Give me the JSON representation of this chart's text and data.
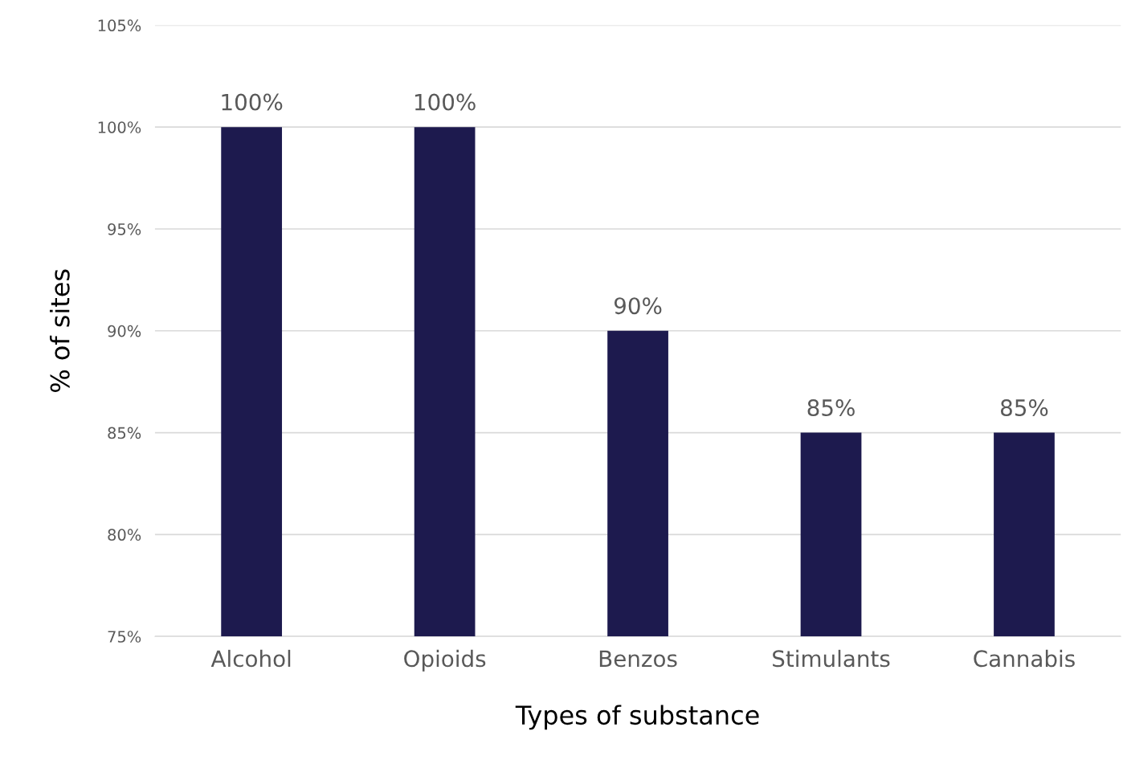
{
  "chart_data": {
    "type": "bar",
    "xlabel": "Types of substance",
    "ylabel": "% of sites",
    "categories": [
      "Alcohol",
      "Opioids",
      "Benzos",
      "Stimulants",
      "Cannabis"
    ],
    "values": [
      100,
      100,
      90,
      85,
      85
    ],
    "color": "#1d1a4e",
    "value_labels": [
      "100%",
      "100%",
      "90%",
      "85%",
      "85%"
    ],
    "ylim": [
      75,
      105
    ],
    "yticks": [
      {
        "value": 75,
        "label": "75%"
      },
      {
        "value": 80,
        "label": "80%"
      },
      {
        "value": 85,
        "label": "85%"
      },
      {
        "value": 90,
        "label": "90%"
      },
      {
        "value": 95,
        "label": "95%"
      },
      {
        "value": 100,
        "label": "100%"
      },
      {
        "value": 105,
        "label": "105%"
      }
    ],
    "grid": "y"
  }
}
